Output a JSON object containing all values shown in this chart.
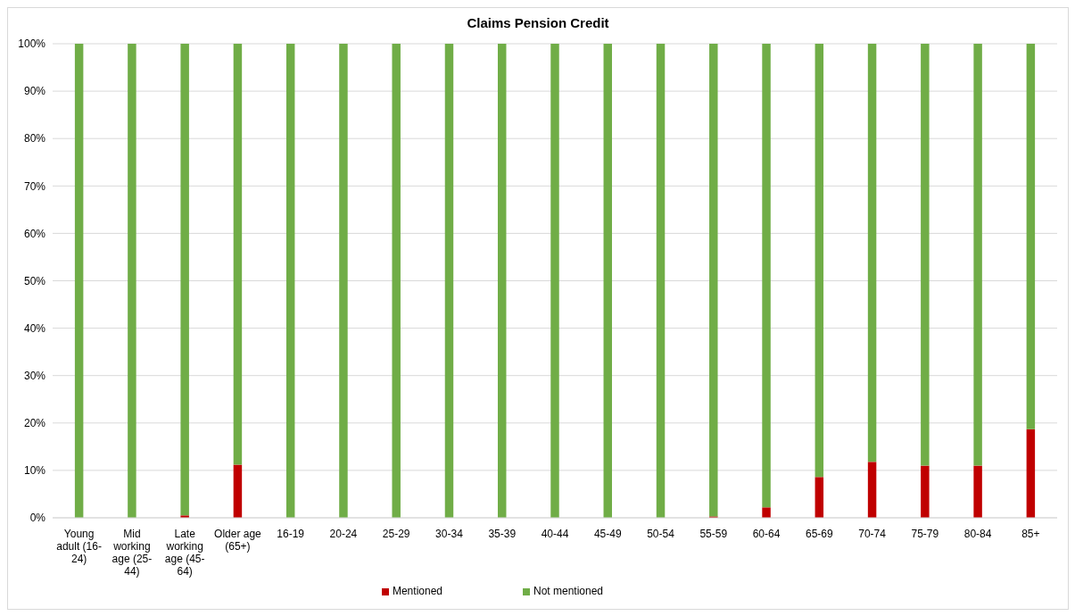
{
  "chart_data": {
    "type": "bar",
    "title": "Claims Pension Credit",
    "stacked": true,
    "categories": [
      "Young adult (16-24)",
      "Mid working age (25-44)",
      "Late working age (45-64)",
      "Older age (65+)",
      "16-19",
      "20-24",
      "25-29",
      "30-34",
      "35-39",
      "40-44",
      "45-49",
      "50-54",
      "55-59",
      "60-64",
      "65-69",
      "70-74",
      "75-79",
      "80-84",
      "85+"
    ],
    "series": [
      {
        "name": "Mentioned",
        "color": "#c00000",
        "values": [
          0,
          0,
          0.5,
          11.2,
          0,
          0,
          0,
          0,
          0,
          0,
          0,
          0,
          0.3,
          2.2,
          8.6,
          11.8,
          11.0,
          11.0,
          18.7
        ]
      },
      {
        "name": "Not mentioned",
        "color": "#70ad47",
        "values": [
          100,
          100,
          99.5,
          88.8,
          100,
          100,
          100,
          100,
          100,
          100,
          100,
          100,
          99.7,
          97.8,
          91.4,
          88.2,
          89.0,
          89.0,
          81.3
        ]
      }
    ],
    "ylim": [
      0,
      100
    ],
    "yticks": [
      {
        "value": 0,
        "label": "0%"
      },
      {
        "value": 10,
        "label": "10%"
      },
      {
        "value": 20,
        "label": "20%"
      },
      {
        "value": 30,
        "label": "30%"
      },
      {
        "value": 40,
        "label": "40%"
      },
      {
        "value": 50,
        "label": "50%"
      },
      {
        "value": 60,
        "label": "60%"
      },
      {
        "value": 70,
        "label": "70%"
      },
      {
        "value": 80,
        "label": "80%"
      },
      {
        "value": 90,
        "label": "90%"
      },
      {
        "value": 100,
        "label": "100%"
      }
    ],
    "grid": "y",
    "legend": "bottom"
  }
}
